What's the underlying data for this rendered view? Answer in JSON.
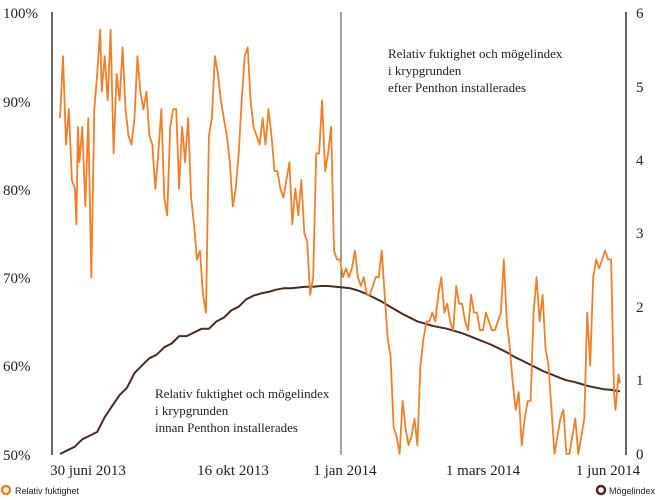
{
  "chart_data": {
    "type": "line",
    "y_left": {
      "ticks": [
        "100%",
        "90%",
        "80%",
        "70%",
        "60%",
        "50%"
      ],
      "min": 50,
      "max": 100
    },
    "y_right": {
      "ticks": [
        "6",
        "5",
        "4",
        "3",
        "2",
        "1",
        "0"
      ],
      "min": 0,
      "max": 6
    },
    "x_ticks": [
      "30 juni 2013",
      "16 okt 2013",
      "1 jan 2014",
      "1 mars 2014",
      "1 jun 2014"
    ],
    "divider": "1 jan 2014",
    "annotations": {
      "before": [
        "Relativ fuktighet och mögelindex",
        "i krypgrunden",
        "innan Penthon installerades"
      ],
      "after": [
        "Relativ fuktighet och mögelindex",
        "i krypgrunden",
        "efter Penthon installerades"
      ]
    },
    "legend": {
      "humidity": "Relativ fuktighet",
      "mold": "Mögelindex"
    },
    "colors": {
      "humidity": "#f07f2a",
      "mold": "#4a2b1f"
    },
    "series": [
      {
        "name": "Relativ fuktighet",
        "axis": "left",
        "points": [
          [
            0,
            88
          ],
          [
            2,
            95
          ],
          [
            4,
            85
          ],
          [
            6,
            89
          ],
          [
            8,
            81
          ],
          [
            10,
            80
          ],
          [
            11,
            76
          ],
          [
            12,
            87
          ],
          [
            13,
            83
          ],
          [
            15,
            87
          ],
          [
            17,
            78
          ],
          [
            19,
            88
          ],
          [
            21,
            70
          ],
          [
            23,
            89
          ],
          [
            25,
            93
          ],
          [
            27,
            98
          ],
          [
            28,
            91
          ],
          [
            30,
            95
          ],
          [
            32,
            90
          ],
          [
            34,
            98
          ],
          [
            36,
            84
          ],
          [
            38,
            93
          ],
          [
            40,
            90
          ],
          [
            42,
            96
          ],
          [
            44,
            89
          ],
          [
            46,
            86
          ],
          [
            48,
            85
          ],
          [
            50,
            88
          ],
          [
            52,
            95
          ],
          [
            54,
            91
          ],
          [
            56,
            89
          ],
          [
            58,
            91
          ],
          [
            60,
            86
          ],
          [
            62,
            85
          ],
          [
            64,
            80
          ],
          [
            66,
            84
          ],
          [
            68,
            89
          ],
          [
            70,
            79
          ],
          [
            72,
            77
          ],
          [
            74,
            87
          ],
          [
            76,
            89
          ],
          [
            78,
            89
          ],
          [
            80,
            80
          ],
          [
            82,
            87
          ],
          [
            84,
            83
          ],
          [
            86,
            88
          ],
          [
            88,
            79
          ],
          [
            90,
            76
          ],
          [
            92,
            72
          ],
          [
            94,
            73
          ],
          [
            96,
            68
          ],
          [
            98,
            66
          ],
          [
            100,
            86
          ],
          [
            102,
            88
          ],
          [
            104,
            95
          ],
          [
            106,
            93
          ],
          [
            108,
            90
          ],
          [
            110,
            88
          ],
          [
            112,
            86
          ],
          [
            114,
            83
          ],
          [
            116,
            78
          ],
          [
            118,
            80
          ],
          [
            120,
            84
          ],
          [
            122,
            90
          ],
          [
            124,
            95
          ],
          [
            126,
            96
          ],
          [
            128,
            90
          ],
          [
            130,
            87
          ],
          [
            132,
            86
          ],
          [
            134,
            85
          ],
          [
            136,
            88
          ],
          [
            138,
            85
          ],
          [
            140,
            89
          ],
          [
            142,
            86
          ],
          [
            144,
            82
          ],
          [
            146,
            82
          ],
          [
            148,
            80
          ],
          [
            150,
            79
          ],
          [
            152,
            81
          ],
          [
            154,
            83
          ],
          [
            156,
            76
          ],
          [
            158,
            80
          ],
          [
            160,
            77
          ],
          [
            162,
            81
          ],
          [
            164,
            75
          ],
          [
            166,
            74
          ],
          [
            168,
            68
          ],
          [
            170,
            70
          ],
          [
            172,
            84
          ],
          [
            174,
            84
          ],
          [
            176,
            90
          ],
          [
            178,
            82
          ],
          [
            180,
            84
          ],
          [
            182,
            87
          ],
          [
            184,
            73
          ],
          [
            186,
            72
          ],
          [
            188,
            72
          ],
          [
            190,
            70
          ],
          [
            192,
            71
          ],
          [
            194,
            70
          ],
          [
            196,
            71
          ],
          [
            198,
            73
          ],
          [
            200,
            70
          ],
          [
            202,
            69
          ],
          [
            204,
            70
          ],
          [
            206,
            68
          ],
          [
            208,
            68
          ],
          [
            210,
            69
          ],
          [
            212,
            70
          ],
          [
            214,
            70
          ],
          [
            216,
            73
          ],
          [
            218,
            68
          ],
          [
            220,
            63
          ],
          [
            222,
            61
          ],
          [
            224,
            53
          ],
          [
            226,
            52
          ],
          [
            228,
            50
          ],
          [
            230,
            56
          ],
          [
            232,
            53
          ],
          [
            234,
            51
          ],
          [
            236,
            52
          ],
          [
            238,
            54
          ],
          [
            240,
            51
          ],
          [
            242,
            60
          ],
          [
            244,
            63
          ],
          [
            246,
            65
          ],
          [
            248,
            65
          ],
          [
            250,
            66
          ],
          [
            252,
            65
          ],
          [
            254,
            68
          ],
          [
            256,
            70
          ],
          [
            258,
            66
          ],
          [
            260,
            67
          ],
          [
            262,
            65
          ],
          [
            264,
            64
          ],
          [
            266,
            69
          ],
          [
            268,
            67
          ],
          [
            270,
            67
          ],
          [
            272,
            65
          ],
          [
            274,
            64
          ],
          [
            276,
            68
          ],
          [
            278,
            66
          ],
          [
            280,
            66
          ],
          [
            282,
            64
          ],
          [
            284,
            64
          ],
          [
            286,
            66
          ],
          [
            288,
            65
          ],
          [
            290,
            64
          ],
          [
            292,
            64
          ],
          [
            294,
            65
          ],
          [
            296,
            66
          ],
          [
            298,
            72
          ],
          [
            300,
            65
          ],
          [
            302,
            62
          ],
          [
            304,
            58
          ],
          [
            306,
            55
          ],
          [
            308,
            57
          ],
          [
            310,
            51
          ],
          [
            312,
            54
          ],
          [
            314,
            56
          ],
          [
            316,
            56
          ],
          [
            318,
            66
          ],
          [
            320,
            70
          ],
          [
            322,
            65
          ],
          [
            324,
            68
          ],
          [
            326,
            62
          ],
          [
            328,
            60
          ],
          [
            330,
            55
          ],
          [
            332,
            50
          ],
          [
            334,
            52
          ],
          [
            336,
            54
          ],
          [
            338,
            55
          ],
          [
            340,
            50
          ],
          [
            342,
            50
          ],
          [
            344,
            52
          ],
          [
            346,
            54
          ],
          [
            348,
            50
          ],
          [
            350,
            52
          ],
          [
            352,
            54
          ],
          [
            354,
            66
          ],
          [
            356,
            60
          ],
          [
            358,
            70
          ],
          [
            360,
            72
          ],
          [
            362,
            71
          ],
          [
            364,
            72
          ],
          [
            366,
            73
          ],
          [
            368,
            72
          ],
          [
            370,
            72
          ],
          [
            372,
            57
          ],
          [
            373,
            55
          ],
          [
            375,
            59
          ],
          [
            376,
            58
          ]
        ]
      },
      {
        "name": "Mögelindex",
        "axis": "right",
        "points": [
          [
            0,
            0
          ],
          [
            5,
            0.05
          ],
          [
            10,
            0.1
          ],
          [
            15,
            0.2
          ],
          [
            20,
            0.25
          ],
          [
            25,
            0.3
          ],
          [
            30,
            0.5
          ],
          [
            35,
            0.65
          ],
          [
            40,
            0.8
          ],
          [
            45,
            0.9
          ],
          [
            50,
            1.1
          ],
          [
            55,
            1.2
          ],
          [
            60,
            1.3
          ],
          [
            65,
            1.35
          ],
          [
            70,
            1.45
          ],
          [
            75,
            1.5
          ],
          [
            80,
            1.6
          ],
          [
            85,
            1.6
          ],
          [
            90,
            1.65
          ],
          [
            95,
            1.7
          ],
          [
            100,
            1.7
          ],
          [
            105,
            1.8
          ],
          [
            110,
            1.85
          ],
          [
            115,
            1.95
          ],
          [
            120,
            2.0
          ],
          [
            125,
            2.1
          ],
          [
            130,
            2.15
          ],
          [
            135,
            2.18
          ],
          [
            140,
            2.2
          ],
          [
            145,
            2.23
          ],
          [
            150,
            2.25
          ],
          [
            155,
            2.25
          ],
          [
            160,
            2.26
          ],
          [
            165,
            2.27
          ],
          [
            170,
            2.27
          ],
          [
            175,
            2.28
          ],
          [
            180,
            2.28
          ],
          [
            185,
            2.27
          ],
          [
            190,
            2.26
          ],
          [
            195,
            2.25
          ],
          [
            200,
            2.22
          ],
          [
            205,
            2.18
          ],
          [
            210,
            2.13
          ],
          [
            215,
            2.08
          ],
          [
            220,
            2.02
          ],
          [
            225,
            1.96
          ],
          [
            230,
            1.9
          ],
          [
            235,
            1.85
          ],
          [
            240,
            1.8
          ],
          [
            245,
            1.77
          ],
          [
            250,
            1.74
          ],
          [
            255,
            1.72
          ],
          [
            260,
            1.7
          ],
          [
            265,
            1.67
          ],
          [
            270,
            1.64
          ],
          [
            275,
            1.6
          ],
          [
            280,
            1.56
          ],
          [
            285,
            1.52
          ],
          [
            290,
            1.48
          ],
          [
            295,
            1.43
          ],
          [
            300,
            1.38
          ],
          [
            305,
            1.32
          ],
          [
            310,
            1.27
          ],
          [
            315,
            1.22
          ],
          [
            320,
            1.17
          ],
          [
            325,
            1.12
          ],
          [
            330,
            1.08
          ],
          [
            335,
            1.04
          ],
          [
            340,
            1.0
          ],
          [
            345,
            0.98
          ],
          [
            350,
            0.95
          ],
          [
            355,
            0.92
          ],
          [
            360,
            0.9
          ],
          [
            365,
            0.88
          ],
          [
            370,
            0.87
          ],
          [
            376,
            0.85
          ]
        ]
      }
    ]
  }
}
